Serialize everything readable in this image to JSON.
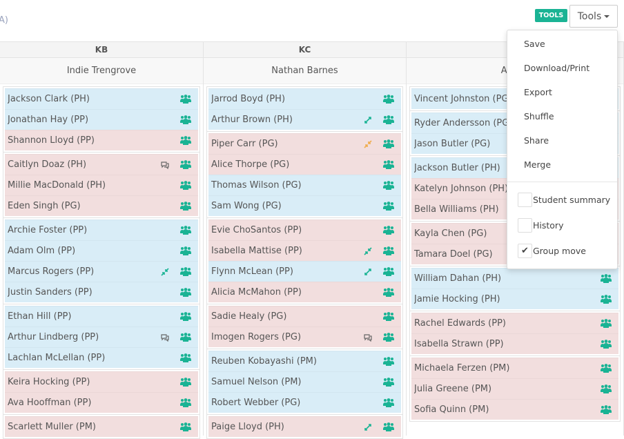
{
  "header": {
    "partial_text": "A)",
    "badge": "TOOLS",
    "tools_button": "Tools"
  },
  "menu": {
    "items": [
      "Save",
      "Download/Print",
      "Export",
      "Shuffle",
      "Share",
      "Merge"
    ],
    "checks": [
      {
        "label": "Student summary",
        "checked": false
      },
      {
        "label": "History",
        "checked": false
      },
      {
        "label": "Group move",
        "checked": true
      }
    ]
  },
  "colors": {
    "blue": "#d9edf7",
    "pink": "#f2dede",
    "accent": "#1ab394",
    "warning": "#f0ad4e"
  },
  "columns": [
    {
      "code": "KB",
      "teacher": "Indie Trengrove",
      "groups": [
        [
          {
            "name": "Jackson Clark (PH)",
            "c": "blue"
          },
          {
            "name": "Jonathan Hay (PP)",
            "c": "blue"
          },
          {
            "name": "Shannon Lloyd (PP)",
            "c": "pink"
          }
        ],
        [
          {
            "name": "Caitlyn Doaz (PH)",
            "c": "pink",
            "icon": "comment"
          },
          {
            "name": "Millie MacDonald (PH)",
            "c": "pink"
          },
          {
            "name": "Eden Singh (PG)",
            "c": "pink"
          }
        ],
        [
          {
            "name": "Archie Foster (PP)",
            "c": "blue"
          },
          {
            "name": "Adam Olm (PP)",
            "c": "blue"
          },
          {
            "name": "Marcus Rogers (PP)",
            "c": "blue",
            "icon": "compress"
          },
          {
            "name": "Justin Sanders (PP)",
            "c": "blue"
          }
        ],
        [
          {
            "name": "Ethan Hill (PP)",
            "c": "blue"
          },
          {
            "name": "Arthur Lindberg (PP)",
            "c": "blue",
            "icon": "comment"
          },
          {
            "name": "Lachlan McLellan (PP)",
            "c": "blue"
          }
        ],
        [
          {
            "name": "Keira Hocking (PP)",
            "c": "pink"
          },
          {
            "name": "Ava Hooffman (PP)",
            "c": "pink"
          }
        ],
        [
          {
            "name": "Scarlett Muller (PM)",
            "c": "pink"
          }
        ]
      ]
    },
    {
      "code": "KC",
      "teacher": "Nathan Barnes",
      "groups": [
        [
          {
            "name": "Jarrod Boyd (PH)",
            "c": "blue"
          },
          {
            "name": "Arthur Brown (PH)",
            "c": "blue",
            "icon": "expand"
          }
        ],
        [
          {
            "name": "Piper Carr (PG)",
            "c": "pink",
            "icon": "compress-warning"
          },
          {
            "name": "Alice Thorpe (PG)",
            "c": "pink"
          },
          {
            "name": "Thomas Wilson (PG)",
            "c": "blue"
          },
          {
            "name": "Sam Wong (PG)",
            "c": "blue"
          }
        ],
        [
          {
            "name": "Evie ChoSantos (PP)",
            "c": "pink"
          },
          {
            "name": "Isabella Mattise (PP)",
            "c": "pink",
            "icon": "compress"
          },
          {
            "name": "Flynn McLean (PP)",
            "c": "blue",
            "icon": "expand"
          },
          {
            "name": "Alicia McMahon (PP)",
            "c": "pink"
          }
        ],
        [
          {
            "name": "Sadie Healy (PG)",
            "c": "pink"
          },
          {
            "name": "Imogen Rogers (PG)",
            "c": "pink",
            "icon": "comment"
          }
        ],
        [
          {
            "name": "Reuben Kobayashi (PM)",
            "c": "blue"
          },
          {
            "name": "Samuel Nelson (PM)",
            "c": "blue"
          },
          {
            "name": "Robert Webber (PG)",
            "c": "blue"
          }
        ],
        [
          {
            "name": "Paige Lloyd (PH)",
            "c": "pink",
            "icon": "expand"
          }
        ]
      ]
    },
    {
      "code": "",
      "teacher": "Angus",
      "groups": [
        [
          {
            "name": "Vincent Johnston (PG)",
            "c": "blue"
          }
        ],
        [
          {
            "name": "Ryder Andersson (PG)",
            "c": "blue"
          },
          {
            "name": "Jason Butler (PG)",
            "c": "blue"
          }
        ],
        [
          {
            "name": "Jackson Butler (PH)",
            "c": "blue"
          },
          {
            "name": "Katelyn Johnson (PH)",
            "c": "pink"
          },
          {
            "name": "Bella Williams (PH)",
            "c": "pink"
          }
        ],
        [
          {
            "name": "Kayla Chen (PG)",
            "c": "pink"
          },
          {
            "name": "Tamara Doel (PG)",
            "c": "pink"
          }
        ],
        [
          {
            "name": "William Dahan (PH)",
            "c": "blue"
          },
          {
            "name": "Jamie Hocking (PH)",
            "c": "blue"
          }
        ],
        [
          {
            "name": "Rachel Edwards (PP)",
            "c": "pink"
          },
          {
            "name": "Isabella Strawn (PP)",
            "c": "pink"
          }
        ],
        [
          {
            "name": "Michaela Ferzen (PM)",
            "c": "pink"
          },
          {
            "name": "Julia Greene (PM)",
            "c": "pink"
          },
          {
            "name": "Sofia Quinn (PM)",
            "c": "pink"
          }
        ]
      ]
    }
  ]
}
